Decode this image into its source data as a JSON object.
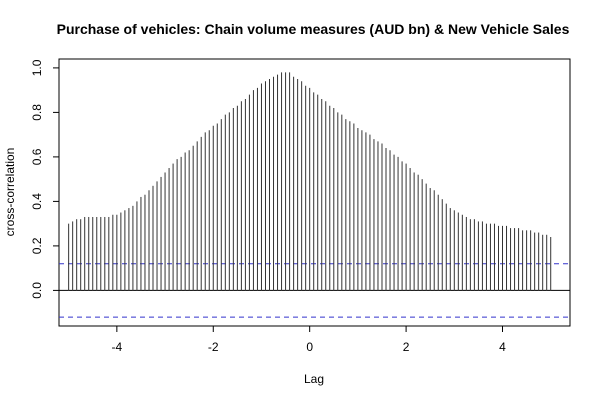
{
  "chart_data": {
    "type": "bar",
    "subtype": "ccf-spike",
    "title": "Purchase of vehicles: Chain volume measures (AUD bn) & New Vehicle Sales",
    "xlabel": "Lag",
    "ylabel": "cross-correlation",
    "xlim": [
      -5.2,
      5.4
    ],
    "ylim": [
      -0.16,
      1.04
    ],
    "x_ticks": [
      -4,
      -2,
      0,
      2,
      4
    ],
    "y_ticks": [
      0.0,
      0.2,
      0.4,
      0.6,
      0.8,
      1.0
    ],
    "x_tick_labels": [
      "-4",
      "-2",
      "0",
      "2",
      "4"
    ],
    "y_tick_labels": [
      "0.0",
      "0.2",
      "0.4",
      "0.6",
      "0.8",
      "1.0"
    ],
    "zero_line": true,
    "confidence_bound": 0.12,
    "confidence_color": "#3333cc",
    "spike_color": "#333333",
    "lag_step": 0.0833333,
    "lags_count": 121,
    "lag_start": -5,
    "values": [
      0.3,
      0.31,
      0.32,
      0.32,
      0.33,
      0.33,
      0.33,
      0.33,
      0.33,
      0.33,
      0.33,
      0.34,
      0.34,
      0.35,
      0.36,
      0.37,
      0.38,
      0.4,
      0.42,
      0.43,
      0.45,
      0.47,
      0.49,
      0.51,
      0.53,
      0.55,
      0.57,
      0.59,
      0.6,
      0.62,
      0.63,
      0.65,
      0.67,
      0.69,
      0.71,
      0.72,
      0.74,
      0.75,
      0.77,
      0.79,
      0.8,
      0.82,
      0.83,
      0.85,
      0.86,
      0.88,
      0.9,
      0.91,
      0.93,
      0.94,
      0.95,
      0.96,
      0.97,
      0.98,
      0.98,
      0.98,
      0.96,
      0.95,
      0.94,
      0.92,
      0.91,
      0.89,
      0.88,
      0.86,
      0.85,
      0.83,
      0.82,
      0.8,
      0.79,
      0.77,
      0.76,
      0.75,
      0.73,
      0.72,
      0.71,
      0.7,
      0.68,
      0.67,
      0.66,
      0.64,
      0.63,
      0.61,
      0.6,
      0.58,
      0.57,
      0.55,
      0.53,
      0.52,
      0.5,
      0.48,
      0.46,
      0.45,
      0.43,
      0.41,
      0.39,
      0.37,
      0.36,
      0.35,
      0.34,
      0.33,
      0.32,
      0.32,
      0.31,
      0.31,
      0.3,
      0.3,
      0.3,
      0.29,
      0.29,
      0.29,
      0.28,
      0.28,
      0.28,
      0.27,
      0.27,
      0.27,
      0.26,
      0.26,
      0.25,
      0.25,
      0.24
    ]
  }
}
